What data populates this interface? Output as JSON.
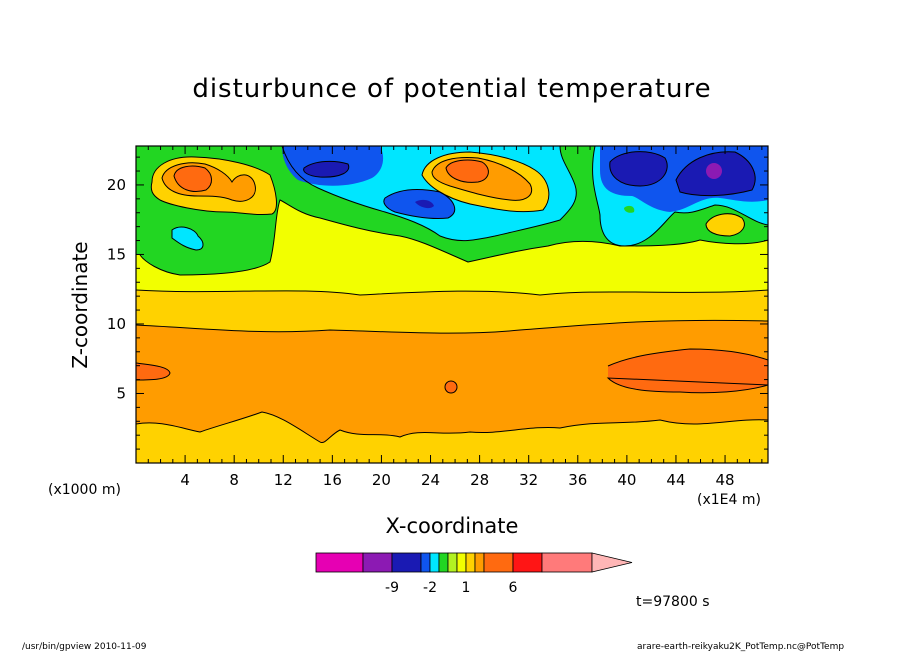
{
  "title": "disturbunce of potential temperature",
  "xlabel": "X-coordinate",
  "ylabel": "Z-coordinate",
  "x_unit_left": "(x1000 m)",
  "x_unit_right": "(x1E4 m)",
  "time_label": "t=97800 s",
  "footer_left": "/usr/bin/gpview   2010-11-09",
  "footer_right": "arare-earth-reikyaku2K_PotTemp.nc@PotTemp",
  "colors": {
    "magenta": "#E600B3",
    "purple": "#8C1AB3",
    "dark_blue": "#1A1AB3",
    "blue": "#0F55EE",
    "cyan": "#00E6FF",
    "green": "#22D622",
    "yellow_green": "#B2F222",
    "yellow": "#F2FF00",
    "gold": "#FFD200",
    "orange": "#FF9C00",
    "dark_orange": "#FF6A10",
    "red": "#FF1515",
    "salmon": "#FF7A7A",
    "pink": "#FFB6B6"
  },
  "chart_data": {
    "type": "contour",
    "x_ticks": [
      "4",
      "8",
      "12",
      "16",
      "20",
      "24",
      "28",
      "32",
      "36",
      "40",
      "44",
      "48"
    ],
    "y_ticks": [
      "5",
      "10",
      "15",
      "20"
    ],
    "xlim": [
      0,
      51.5
    ],
    "ylim": [
      0,
      22.8
    ],
    "colorbar": {
      "labels": [
        "-9",
        "-2",
        "1",
        "6"
      ],
      "colors": [
        "#E600B3",
        "#8C1AB3",
        "#1A1AB3",
        "#0F55EE",
        "#00E6FF",
        "#22D622",
        "#B2F222",
        "#F2FF00",
        "#FFD200",
        "#FF9C00",
        "#FF6A10",
        "#FF1515",
        "#FF7A7A",
        "#FFB6B6"
      ]
    },
    "features": [
      {
        "level": "orange",
        "z_range": [
          1.5,
          9.6
        ],
        "note": "broad warm band"
      },
      {
        "level": "dark_orange",
        "x_range": [
          38.5,
          51.5
        ],
        "z_range": [
          4.5,
          8.2
        ]
      },
      {
        "level": "dark_orange",
        "x_range": [
          0,
          2.5
        ],
        "z_range": [
          5.9,
          7.2
        ]
      },
      {
        "level": "dark_orange",
        "x": 25.5,
        "z": 5.5
      },
      {
        "level": "cold_pool",
        "x_range": [
          38,
          51.5
        ],
        "z_range": [
          16.5,
          22.8
        ]
      },
      {
        "level": "purple",
        "x": 46.5,
        "z": 21.0
      },
      {
        "level": "warm_blob",
        "x": 4.5,
        "z": 20.5
      },
      {
        "level": "warm_blob",
        "x": 26.5,
        "z": 20.5
      }
    ]
  }
}
